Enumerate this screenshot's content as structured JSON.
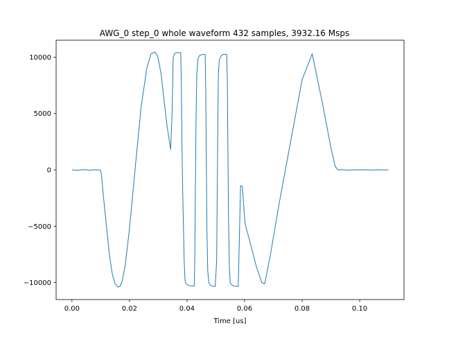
{
  "chart_data": {
    "type": "line",
    "title": "AWG_0 step_0 whole waveform 432 samples, 3932.16 Msps",
    "xlabel": "Time [us]",
    "ylabel": "",
    "xlim": [
      -0.0055,
      0.1154
    ],
    "ylim": [
      -11500,
      11500
    ],
    "xticks": [
      0.0,
      0.02,
      0.04,
      0.06,
      0.08,
      0.1
    ],
    "xtick_labels": [
      "0.00",
      "0.02",
      "0.04",
      "0.06",
      "0.08",
      "0.10"
    ],
    "yticks": [
      -10000,
      -5000,
      0,
      5000,
      10000
    ],
    "ytick_labels": [
      "−10000",
      "−5000",
      "0",
      "5000",
      "10000"
    ],
    "grid": false,
    "series": [
      {
        "color": "#1f77b4",
        "x": [
          0.0,
          0.002,
          0.004,
          0.006,
          0.008,
          0.0098,
          0.0102,
          0.011,
          0.012,
          0.013,
          0.014,
          0.015,
          0.016,
          0.0168,
          0.0175,
          0.0185,
          0.02,
          0.022,
          0.024,
          0.026,
          0.0275,
          0.0288,
          0.0298,
          0.031,
          0.032,
          0.033,
          0.0343,
          0.0348,
          0.0352,
          0.0358,
          0.0365,
          0.0378,
          0.038,
          0.0382,
          0.0385,
          0.039,
          0.0393,
          0.0397,
          0.0402,
          0.0408,
          0.0415,
          0.0425,
          0.0427,
          0.0429,
          0.0431,
          0.0434,
          0.0438,
          0.0442,
          0.0448,
          0.0458,
          0.0463,
          0.0465,
          0.0467,
          0.0469,
          0.0472,
          0.0476,
          0.048,
          0.0486,
          0.0498,
          0.0503,
          0.0505,
          0.0507,
          0.0509,
          0.0512,
          0.0516,
          0.052,
          0.0526,
          0.0538,
          0.054,
          0.0542,
          0.0544,
          0.0547,
          0.055,
          0.0555,
          0.0562,
          0.0578,
          0.0582,
          0.0586,
          0.0592,
          0.0595,
          0.0598,
          0.0602,
          0.062,
          0.064,
          0.066,
          0.067,
          0.069,
          0.072,
          0.076,
          0.08,
          0.0835,
          0.087,
          0.09,
          0.0915,
          0.0925,
          0.094,
          0.096,
          0.098,
          0.1,
          0.102,
          0.104,
          0.106,
          0.108,
          0.11
        ],
        "y": [
          0,
          -30,
          20,
          -20,
          10,
          0,
          -300,
          -2500,
          -5000,
          -7500,
          -9200,
          -10100,
          -10400,
          -10300,
          -9800,
          -8500,
          -5200,
          200,
          5500,
          9000,
          10300,
          10450,
          10100,
          8500,
          6200,
          4000,
          1800,
          5000,
          10000,
          10350,
          10400,
          10400,
          8000,
          3000,
          -2000,
          -8000,
          -9800,
          -10100,
          -10200,
          -10250,
          -10300,
          -10300,
          -8000,
          -2000,
          4000,
          8500,
          9800,
          10100,
          10200,
          10250,
          10250,
          7000,
          1000,
          -5000,
          -9000,
          -10000,
          -10200,
          -10300,
          -10350,
          -8000,
          -2000,
          4000,
          8500,
          9700,
          10000,
          10150,
          10250,
          10250,
          8000,
          2000,
          -4000,
          -8500,
          -10000,
          -10200,
          -10300,
          -10350,
          -6000,
          -1400,
          -1450,
          -2500,
          -3500,
          -4800,
          -6500,
          -8500,
          -10000,
          -10100,
          -7500,
          -3000,
          2500,
          8000,
          10300,
          6000,
          2000,
          300,
          0,
          20,
          -20,
          10,
          -10,
          15,
          -15,
          10,
          -10,
          0
        ]
      }
    ]
  }
}
